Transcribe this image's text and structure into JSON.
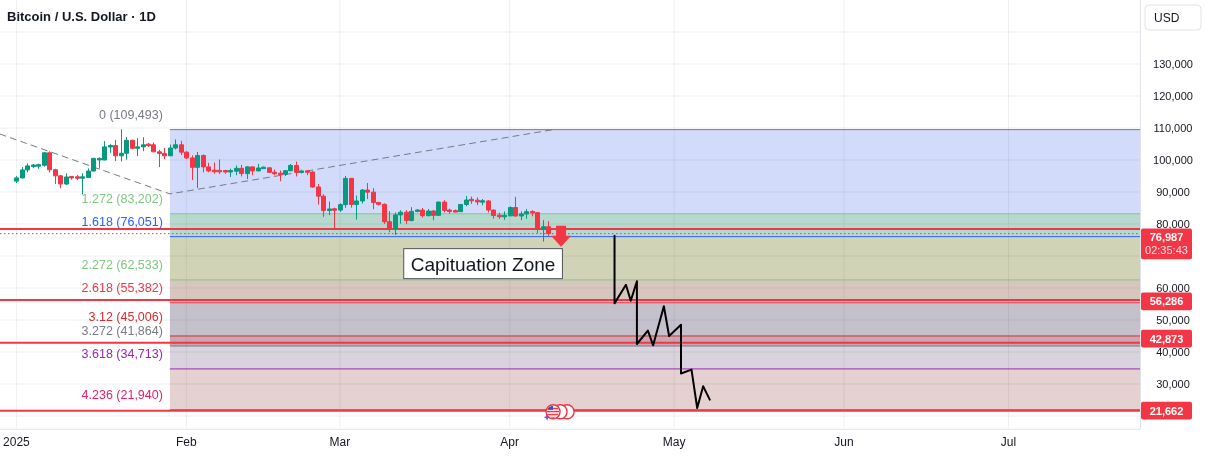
{
  "chart_data": {
    "type": "candlestick",
    "title": "Bitcoin / U.S. Dollar · 1D",
    "ylabel": "USD",
    "x": [
      "2025-01-01",
      "2025-01-02",
      "2025-01-03",
      "2025-01-04",
      "2025-01-05",
      "2025-01-06",
      "2025-01-07",
      "2025-01-08",
      "2025-01-09",
      "2025-01-10",
      "2025-01-11",
      "2025-01-12",
      "2025-01-13",
      "2025-01-14",
      "2025-01-15",
      "2025-01-16",
      "2025-01-17",
      "2025-01-18",
      "2025-01-19",
      "2025-01-20",
      "2025-01-21",
      "2025-01-22",
      "2025-01-23",
      "2025-01-24",
      "2025-01-25",
      "2025-01-26",
      "2025-01-27",
      "2025-01-28",
      "2025-01-29",
      "2025-01-30",
      "2025-01-31",
      "2025-02-01",
      "2025-02-02",
      "2025-02-03",
      "2025-02-04",
      "2025-02-05",
      "2025-02-06",
      "2025-02-07",
      "2025-02-08",
      "2025-02-09",
      "2025-02-10",
      "2025-02-11",
      "2025-02-12",
      "2025-02-13",
      "2025-02-14",
      "2025-02-15",
      "2025-02-16",
      "2025-02-17",
      "2025-02-18",
      "2025-02-19",
      "2025-02-20",
      "2025-02-21",
      "2025-02-22",
      "2025-02-23",
      "2025-02-24",
      "2025-02-25",
      "2025-02-26",
      "2025-02-27",
      "2025-02-28",
      "2025-03-01",
      "2025-03-02",
      "2025-03-03",
      "2025-03-04",
      "2025-03-05",
      "2025-03-06",
      "2025-03-07",
      "2025-03-08",
      "2025-03-09",
      "2025-03-10",
      "2025-03-11",
      "2025-03-12",
      "2025-03-13",
      "2025-03-14",
      "2025-03-15",
      "2025-03-16",
      "2025-03-17",
      "2025-03-18",
      "2025-03-19",
      "2025-03-20",
      "2025-03-21",
      "2025-03-22",
      "2025-03-23",
      "2025-03-24",
      "2025-03-25",
      "2025-03-26",
      "2025-03-27",
      "2025-03-28",
      "2025-03-29",
      "2025-03-30",
      "2025-03-31",
      "2025-04-01",
      "2025-04-02",
      "2025-04-03",
      "2025-04-04",
      "2025-04-05",
      "2025-04-06",
      "2025-04-07",
      "2025-04-08"
    ],
    "ohlc": [
      [
        93400,
        94950,
        92800,
        94400
      ],
      [
        94400,
        97800,
        94200,
        96900
      ],
      [
        96900,
        98950,
        96150,
        98150
      ],
      [
        98150,
        98750,
        97550,
        98250
      ],
      [
        98250,
        98800,
        97250,
        98350
      ],
      [
        98350,
        102500,
        97900,
        102250
      ],
      [
        102250,
        102700,
        96100,
        96950
      ],
      [
        96950,
        97250,
        92500,
        95050
      ],
      [
        95050,
        95350,
        91200,
        92500
      ],
      [
        92500,
        95850,
        92200,
        94700
      ],
      [
        94700,
        94950,
        93850,
        94550
      ],
      [
        94550,
        95350,
        93700,
        94500
      ],
      [
        94500,
        95850,
        89250,
        94550
      ],
      [
        94550,
        97350,
        94300,
        96550
      ],
      [
        96550,
        100700,
        96450,
        100500
      ],
      [
        100000,
        100850,
        97300,
        100500
      ],
      [
        100000,
        105900,
        99950,
        104100
      ],
      [
        104100,
        104950,
        102250,
        104500
      ],
      [
        104500,
        106300,
        99650,
        101300
      ],
      [
        101300,
        109600,
        99550,
        102100
      ],
      [
        102100,
        107150,
        100100,
        106150
      ],
      [
        106150,
        106350,
        103350,
        103650
      ],
      [
        103650,
        106850,
        101250,
        104100
      ],
      [
        104100,
        107100,
        102750,
        104750
      ],
      [
        104750,
        105300,
        104100,
        104700
      ],
      [
        104750,
        105450,
        102450,
        102550
      ],
      [
        102550,
        103200,
        97800,
        102050
      ],
      [
        102050,
        103750,
        100250,
        101300
      ],
      [
        101300,
        104800,
        101250,
        103750
      ],
      [
        103750,
        106450,
        103300,
        104750
      ],
      [
        104750,
        106000,
        101550,
        102450
      ],
      [
        102450,
        102750,
        100300,
        100650
      ],
      [
        100650,
        101450,
        93700,
        97700
      ],
      [
        97700,
        102500,
        91250,
        101400
      ],
      [
        101400,
        101750,
        96150,
        97850
      ],
      [
        97850,
        99100,
        96150,
        96600
      ],
      [
        96600,
        99200,
        95700,
        96550
      ],
      [
        96550,
        100150,
        95650,
        96500
      ],
      [
        96500,
        96900,
        95700,
        96450
      ],
      [
        96450,
        97300,
        94700,
        96500
      ],
      [
        96500,
        98300,
        95250,
        97400
      ],
      [
        97400,
        98450,
        94850,
        95750
      ],
      [
        95750,
        98100,
        94050,
        97850
      ],
      [
        97850,
        98050,
        95250,
        96600
      ],
      [
        96600,
        98800,
        96450,
        97500
      ],
      [
        97500,
        97950,
        97250,
        97550
      ],
      [
        97550,
        97700,
        96050,
        96150
      ],
      [
        96150,
        97000,
        95250,
        95750
      ],
      [
        95750,
        96700,
        93350,
        95550
      ],
      [
        95550,
        96850,
        95000,
        96650
      ],
      [
        96650,
        98750,
        96450,
        98300
      ],
      [
        98300,
        99500,
        94850,
        96150
      ],
      [
        96150,
        96950,
        95800,
        96550
      ],
      [
        96550,
        96650,
        95250,
        96250
      ],
      [
        96250,
        96500,
        91350,
        91550
      ],
      [
        91550,
        92500,
        86050,
        88700
      ],
      [
        88700,
        89300,
        82250,
        84200
      ],
      [
        84200,
        87000,
        82800,
        84700
      ],
      [
        84700,
        85100,
        78250,
        84350
      ],
      [
        84350,
        86500,
        83800,
        86050
      ],
      [
        86050,
        95000,
        85050,
        94250
      ],
      [
        94250,
        94400,
        85100,
        86100
      ],
      [
        86100,
        88900,
        81400,
        87200
      ],
      [
        87200,
        90950,
        86400,
        90600
      ],
      [
        90600,
        92800,
        87800,
        89950
      ],
      [
        89950,
        91200,
        84650,
        86750
      ],
      [
        86750,
        86850,
        85750,
        86150
      ],
      [
        86150,
        86450,
        80050,
        80700
      ],
      [
        80700,
        84000,
        77400,
        78550
      ],
      [
        78550,
        83600,
        76600,
        82850
      ],
      [
        82850,
        84300,
        80100,
        83700
      ],
      [
        83700,
        84300,
        79950,
        81100
      ],
      [
        81100,
        85250,
        80800,
        83950
      ],
      [
        83950,
        84650,
        83650,
        84350
      ],
      [
        84350,
        85000,
        82050,
        82600
      ],
      [
        82600,
        84700,
        82400,
        84050
      ],
      [
        84050,
        84400,
        81150,
        82700
      ],
      [
        82700,
        87000,
        82600,
        86850
      ],
      [
        86850,
        87450,
        83650,
        84200
      ],
      [
        84200,
        84800,
        83200,
        84050
      ],
      [
        84050,
        84550,
        83650,
        83850
      ],
      [
        83850,
        86100,
        83800,
        86100
      ],
      [
        86100,
        88750,
        85550,
        87500
      ],
      [
        87500,
        88550,
        86300,
        87450
      ],
      [
        87450,
        88300,
        85900,
        86900
      ],
      [
        86900,
        87800,
        85850,
        87200
      ],
      [
        87200,
        87500,
        83600,
        84350
      ],
      [
        84350,
        84550,
        81650,
        82650
      ],
      [
        82650,
        83550,
        81600,
        82400
      ],
      [
        82400,
        83950,
        81300,
        82550
      ],
      [
        82550,
        85500,
        82450,
        85150
      ],
      [
        85150,
        88500,
        82300,
        82500
      ],
      [
        82500,
        83950,
        81200,
        83150
      ],
      [
        83150,
        84700,
        81650,
        83850
      ],
      [
        83850,
        84250,
        82400,
        83550
      ],
      [
        83550,
        83800,
        77200,
        78400
      ],
      [
        78400,
        81200,
        74500,
        79150
      ],
      [
        79150,
        80900,
        76200,
        76987
      ]
    ],
    "series": [
      {
        "type": "line",
        "color": "#787b86",
        "line_style": "dashed",
        "x": [
          "2024-12-29",
          "2025-01-29",
          "2025-04-09"
        ],
        "values": [
          108100,
          89400,
          109500
        ]
      },
      {
        "type": "line",
        "color": "#000000",
        "line_style": "solid",
        "x": [
          "2025-04-20T03:00",
          "2025-04-20T03:00",
          "2025-04-22T05:00",
          "2025-04-23T02:00",
          "2025-04-24T05:00",
          "2025-04-24T05:00",
          "2025-04-26T05:00",
          "2025-04-27T04:00",
          "2025-04-29T03:00",
          "2025-04-30T02:00",
          "2025-05-02T06:00",
          "2025-05-02T06:00",
          "2025-05-04T04:00",
          "2025-05-05T05:00",
          "2025-05-06T07:00",
          "2025-05-07T12:00"
        ],
        "values": [
          76300,
          55200,
          61000,
          56000,
          62100,
          42500,
          46700,
          42100,
          54300,
          45000,
          48500,
          33300,
          34500,
          22500,
          29300,
          25100
        ]
      }
    ],
    "xlim": [
      "2024-12-29",
      "2025-07-25"
    ],
    "xticks": [
      {
        "value": "2025-01-01",
        "label": "2025"
      },
      {
        "value": "2025-02-01",
        "label": "Feb"
      },
      {
        "value": "2025-03-01",
        "label": "Mar"
      },
      {
        "value": "2025-04-01",
        "label": "Apr"
      },
      {
        "value": "2025-05-01",
        "label": "May"
      },
      {
        "value": "2025-06-01",
        "label": "Jun"
      },
      {
        "value": "2025-07-01",
        "label": "Jul"
      }
    ],
    "ylim": [
      16000,
      150000
    ],
    "yticks": [
      {
        "value": 20000,
        "label": null
      },
      {
        "value": 30000,
        "label": "30,000"
      },
      {
        "value": 40000,
        "label": "40,000"
      },
      {
        "value": 50000,
        "label": "50,000"
      },
      {
        "value": 60000,
        "label": "60,000"
      },
      {
        "value": 70000,
        "label": null
      },
      {
        "value": 80000,
        "label": "80,000"
      },
      {
        "value": 90000,
        "label": "90,000"
      },
      {
        "value": 100000,
        "label": "100,000"
      },
      {
        "value": 110000,
        "label": "110,000"
      },
      {
        "value": 120000,
        "label": "120,000"
      },
      {
        "value": 130000,
        "label": "130,000"
      },
      {
        "value": 140000,
        "label": null
      }
    ],
    "grid": true,
    "bands": [
      {
        "axis": "y",
        "from": 83202,
        "to": 109493,
        "color": "#d2dbfa"
      },
      {
        "axis": "y",
        "from": 76051,
        "to": 83202,
        "color": "#b6d8cf"
      },
      {
        "axis": "y",
        "from": 62533,
        "to": 76051,
        "color": "#d0d3b6"
      },
      {
        "axis": "y",
        "from": 55382,
        "to": 62533,
        "color": "#d7c6bd"
      },
      {
        "axis": "y",
        "from": 45006,
        "to": 55382,
        "color": "#c4c1cc"
      },
      {
        "axis": "y",
        "from": 41864,
        "to": 45006,
        "color": "#c7a7b0"
      },
      {
        "axis": "y",
        "from": 34713,
        "to": 41864,
        "color": "#d8d3dd"
      },
      {
        "axis": "y",
        "from": 21940,
        "to": 34713,
        "color": "#e4d1d0"
      }
    ],
    "ref_lines": [
      {
        "axis": "y",
        "value": 109493,
        "label": "0 (109,493)",
        "color": "#787b86"
      },
      {
        "axis": "y",
        "value": 83202,
        "label": "1.272 (83,202)",
        "color": "#81c784"
      },
      {
        "axis": "y",
        "value": 76051,
        "label": "1.618 (76,051)",
        "color": "#2962ff"
      },
      {
        "axis": "y",
        "value": 62533,
        "label": "2.272 (62,533)",
        "color": "#81c784"
      },
      {
        "axis": "y",
        "value": 55382,
        "label": "2.618 (55,382)",
        "color": "#f23645"
      },
      {
        "axis": "y",
        "value": 45006,
        "label": "3.12 (45,006)",
        "color": "#d32f2f"
      },
      {
        "axis": "y",
        "value": 41864,
        "label": "3.272 (41,864)",
        "color": "#787b86"
      },
      {
        "axis": "y",
        "value": 34713,
        "label": "3.618 (34,713)",
        "color": "#9c27b0"
      },
      {
        "axis": "y",
        "value": 21940,
        "label": "4.236 (21,940)",
        "color": "#e91e63"
      },
      {
        "axis": "y",
        "value": 78400,
        "color": "#f23645"
      },
      {
        "axis": "y",
        "value": 76987,
        "label": "76,987",
        "color": "#f23645",
        "line_style": "dotted"
      },
      {
        "axis": "y",
        "value": 56286,
        "label": "56,286",
        "color": "#f23645"
      },
      {
        "axis": "y",
        "value": 42873,
        "label": "42,873",
        "color": "#f23645"
      },
      {
        "axis": "y",
        "value": 21662,
        "label": "21,662",
        "color": "#f23645"
      }
    ],
    "annotations": [
      "Capituation Zone",
      "02:35:43"
    ]
  }
}
